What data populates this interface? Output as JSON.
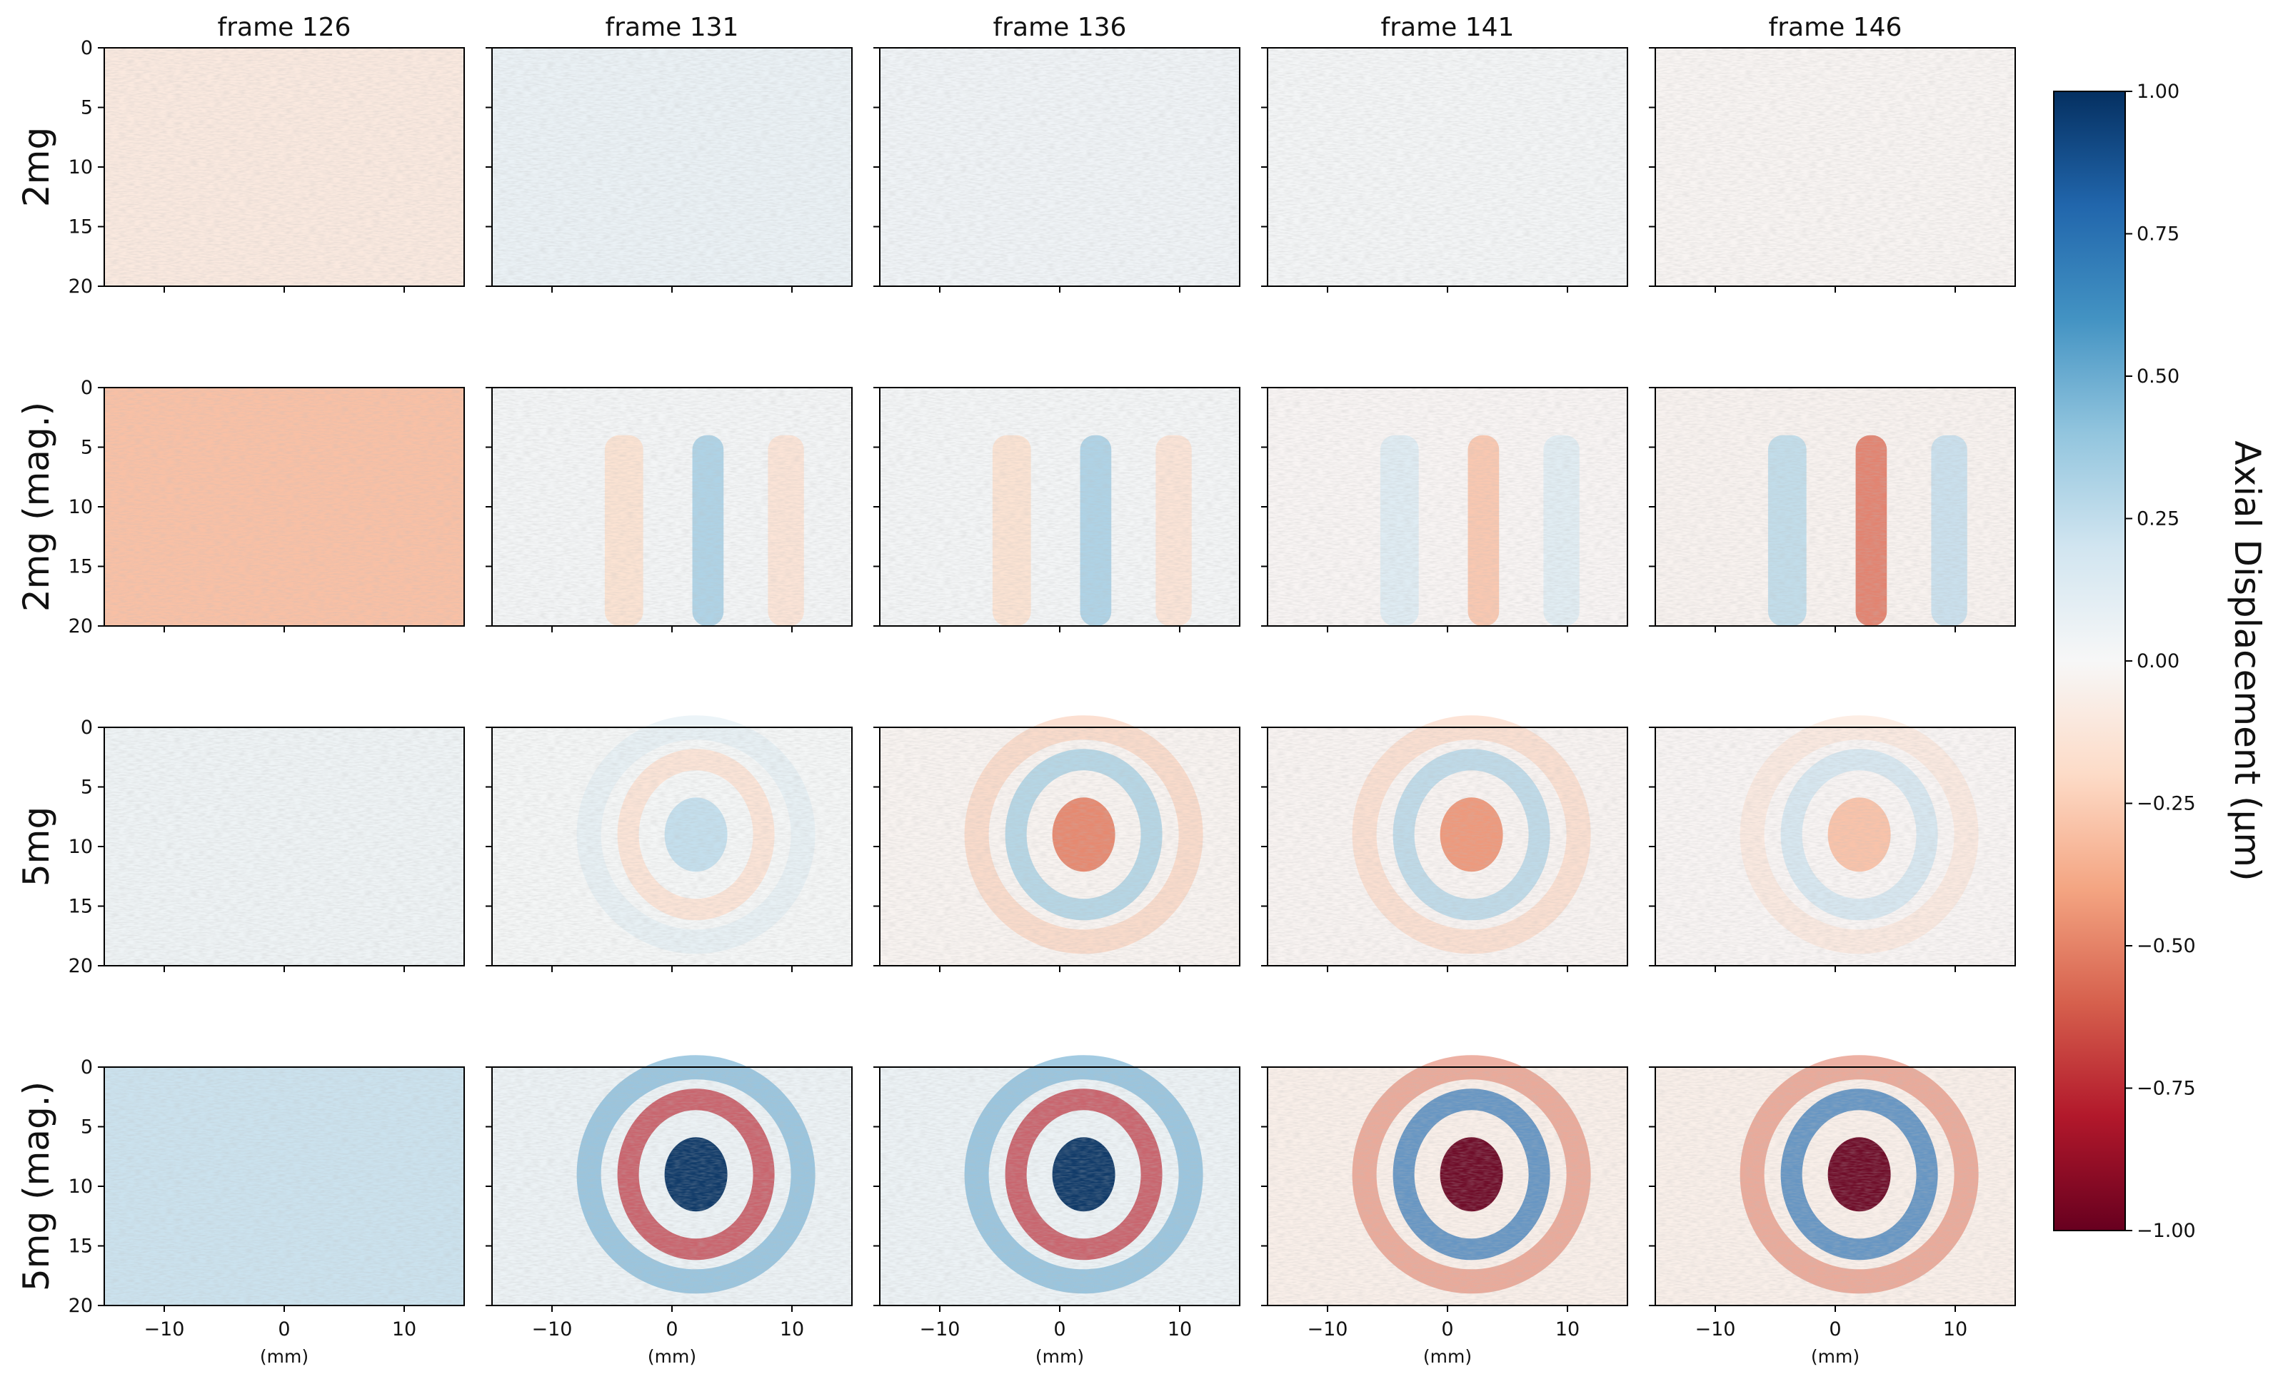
{
  "chart_data": {
    "type": "heatmap",
    "title": "",
    "columns": [
      "frame 126",
      "frame 131",
      "frame 136",
      "frame 141",
      "frame 146"
    ],
    "rows": [
      "2mg",
      "2mg (mag.)",
      "5mg",
      "5mg (mag.)"
    ],
    "x_axis": {
      "label": "(mm)",
      "range": [
        -15,
        15
      ],
      "ticks": [
        -10,
        0,
        10
      ],
      "tick_labels": [
        "−10",
        "0",
        "10"
      ]
    },
    "y_axis": {
      "label": "",
      "range": [
        0,
        20
      ],
      "inverted": true,
      "ticks": [
        0,
        5,
        10,
        15,
        20
      ],
      "tick_labels": [
        "0",
        "5",
        "10",
        "15",
        "20"
      ]
    },
    "colorbar": {
      "label": "Axial Displacement (μm)",
      "colormap": "RdBu",
      "range": [
        -1.0,
        1.0
      ],
      "ticks": [
        1.0,
        0.75,
        0.5,
        0.25,
        0.0,
        -0.25,
        -0.5,
        -0.75,
        -1.0
      ],
      "tick_labels": [
        "1.00",
        "0.75",
        "0.50",
        "0.25",
        "0.00",
        "−0.25",
        "−0.50",
        "−0.75",
        "−1.00"
      ],
      "stops": [
        "#67001f",
        "#b2182b",
        "#d6604d",
        "#f4a582",
        "#fddbc7",
        "#f7f7f7",
        "#d1e5f0",
        "#92c5de",
        "#4393c3",
        "#2166ac",
        "#053061"
      ]
    },
    "fields": [
      [
        {
          "pattern": "uniform",
          "level": -0.1
        },
        {
          "pattern": "uniform",
          "level": 0.07
        },
        {
          "pattern": "uniform",
          "level": 0.04
        },
        {
          "pattern": "uniform",
          "level": 0.02
        },
        {
          "pattern": "uniform",
          "level": -0.02
        }
      ],
      [
        {
          "pattern": "uniform",
          "level": -0.3
        },
        {
          "pattern": "bands",
          "level": 0.35
        },
        {
          "pattern": "bands",
          "level": 0.35
        },
        {
          "pattern": "bands",
          "level": -0.3
        },
        {
          "pattern": "bands",
          "level": -0.55
        }
      ],
      [
        {
          "pattern": "uniform",
          "level": 0.05
        },
        {
          "pattern": "rings",
          "level": 0.25
        },
        {
          "pattern": "rings",
          "level": -0.5
        },
        {
          "pattern": "rings",
          "level": -0.45
        },
        {
          "pattern": "rings",
          "level": -0.3
        }
      ],
      [
        {
          "pattern": "uniform",
          "level": 0.22
        },
        {
          "pattern": "rings",
          "level": 1.0
        },
        {
          "pattern": "rings",
          "level": 1.0
        },
        {
          "pattern": "rings",
          "level": -1.0
        },
        {
          "pattern": "rings",
          "level": -1.0
        }
      ]
    ]
  }
}
